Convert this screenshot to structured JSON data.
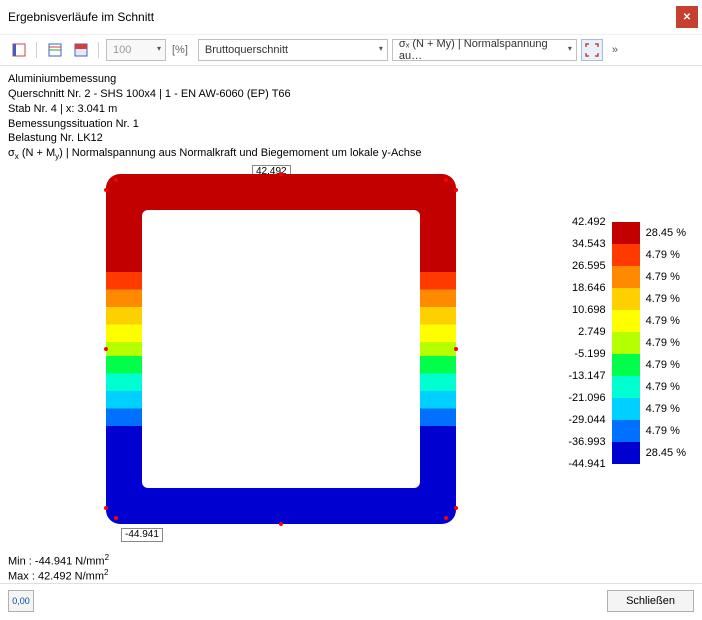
{
  "window": {
    "title": "Ergebnisverläufe im Schnitt"
  },
  "toolbar": {
    "zoom_value": "100",
    "percent_label": "[%]",
    "section_type": "Bruttoquerschnitt",
    "result_type": "σₓ (N + My) | Normalspannung au…"
  },
  "info": {
    "line1": "Aluminiumbemessung",
    "line2": "Querschnitt Nr. 2 - SHS 100x4 | 1 - EN AW-6060 (EP) T66",
    "line3": "Stab Nr. 4 | x: 3.041 m",
    "line4": "Bemessungssituation Nr. 1",
    "line5": "Belastung Nr. LK12",
    "line6_prefix": "σ",
    "line6_sub1": "x",
    "line6_mid1": " (N + M",
    "line6_sub2": "y",
    "line6_mid2": ") | Normalspannung aus Normalkraft und Biegemoment um lokale y-Achse"
  },
  "labels": {
    "top_value": "42.492",
    "bottom_value": "-44.941",
    "min_label": "Min :",
    "min_value": "-44.941 N/mm",
    "max_label": "Max :",
    "max_value": "42.492 N/mm",
    "unit_sup": "2"
  },
  "legend": {
    "values": [
      "42.492",
      "34.543",
      "26.595",
      "18.646",
      "10.698",
      "2.749",
      "-5.199",
      "-13.147",
      "-21.096",
      "-29.044",
      "-36.993",
      "-44.941"
    ],
    "colors": [
      "#c20000",
      "#ff3a00",
      "#ff8a00",
      "#ffd000",
      "#ffff00",
      "#b6ff00",
      "#00ff4a",
      "#00ffd0",
      "#00d0ff",
      "#0070ff",
      "#0000d0"
    ],
    "percents": [
      "28.45 %",
      "4.79 %",
      "4.79 %",
      "4.79 %",
      "4.79 %",
      "4.79 %",
      "4.79 %",
      "4.79 %",
      "4.79 %",
      "4.79 %",
      "28.45 %"
    ]
  },
  "gradient": {
    "top_outer": "#c20000",
    "band1": "#ff3a00",
    "band2": "#ff8a00",
    "band3": "#ffd000",
    "band4": "#ffff00",
    "band5": "#b6ff00",
    "band6": "#00ff4a",
    "band7": "#00ffd0",
    "band8": "#00d0ff",
    "band9": "#0070ff",
    "bottom_outer": "#0000d0"
  },
  "footer": {
    "left_icon_text": "0,00",
    "close_label": "Schließen"
  }
}
